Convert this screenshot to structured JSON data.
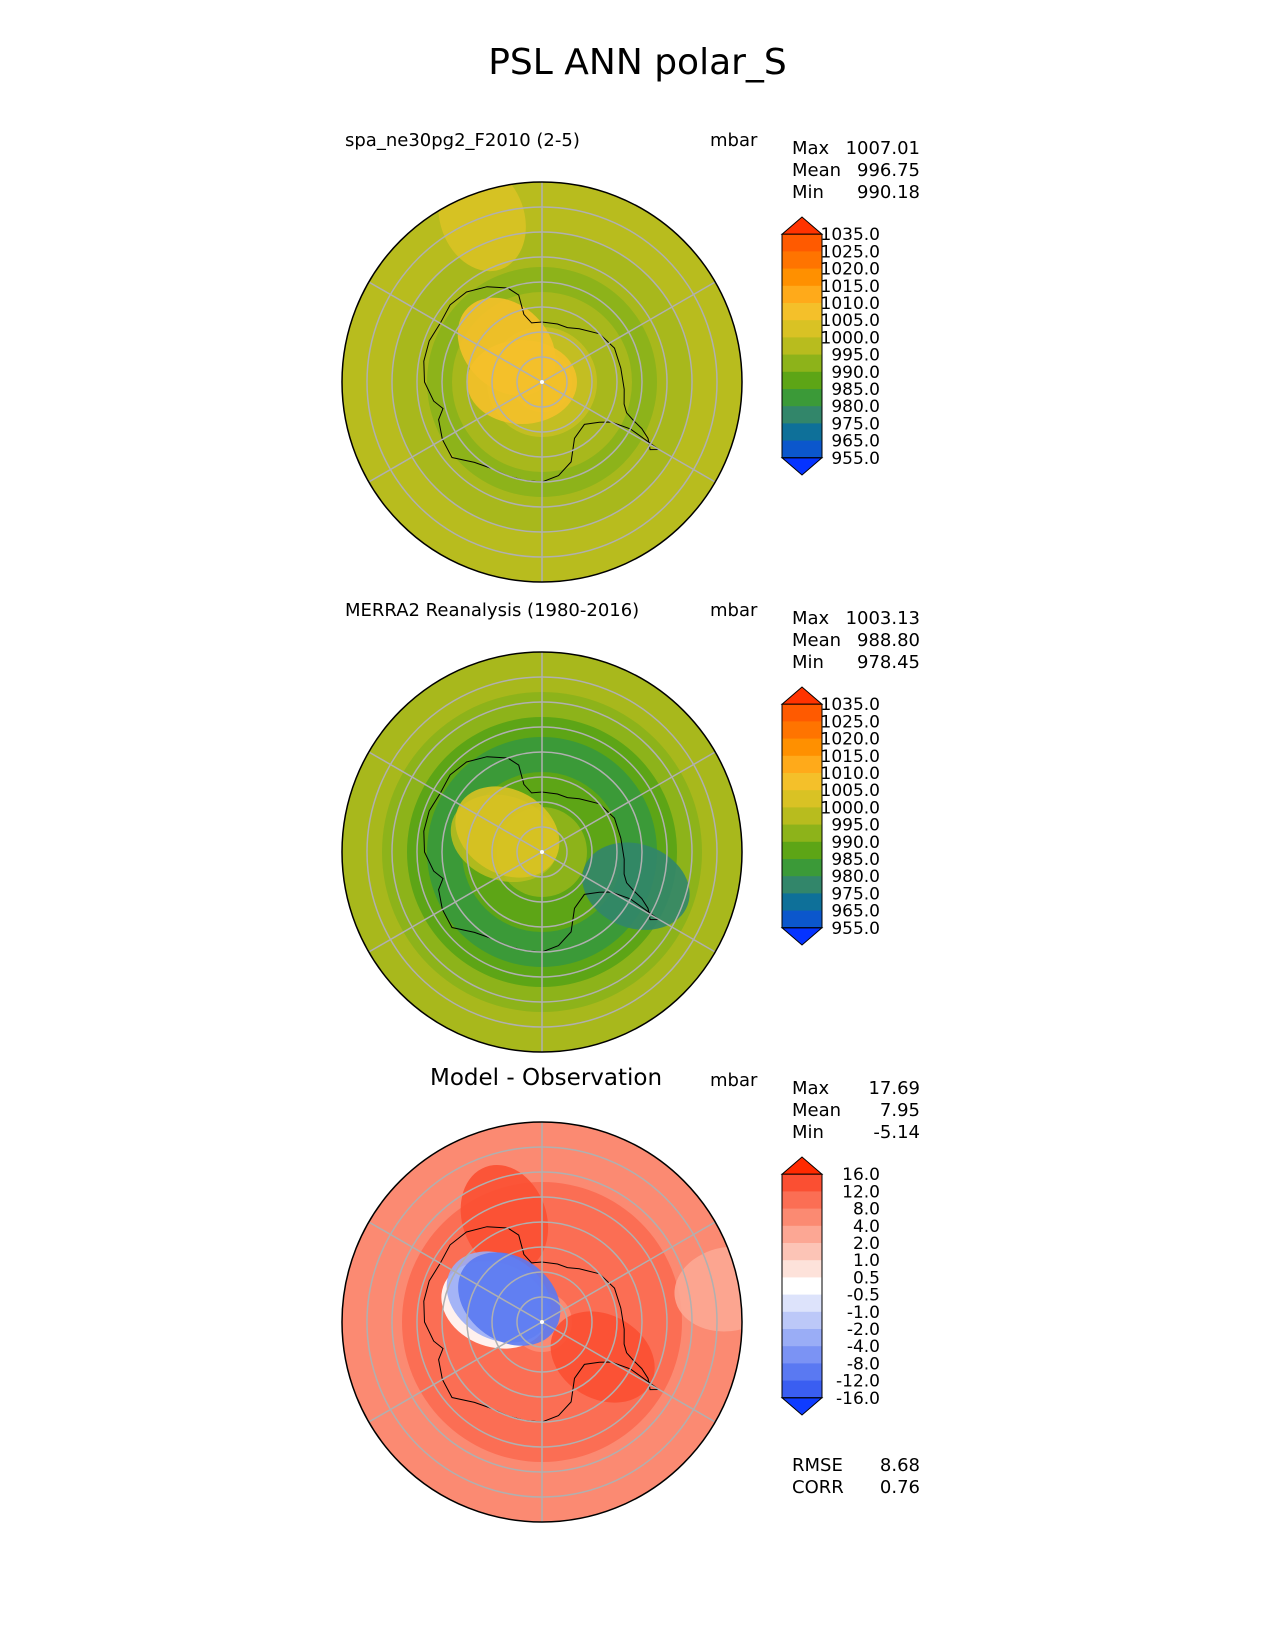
{
  "figure": {
    "title": "PSL ANN polar_S"
  },
  "chart_data": [
    {
      "type": "heatmap",
      "projection": "south-polar-stereographic",
      "title": "spa_ne30pg2_F2010 (2-5)",
      "units": "mbar",
      "stats": [
        {
          "label": "Max",
          "value": "1007.01"
        },
        {
          "label": "Mean",
          "value": "996.75"
        },
        {
          "label": "Min",
          "value": "990.18"
        }
      ],
      "colorbar": {
        "levels": [
          "1035.0",
          "1025.0",
          "1020.0",
          "1015.0",
          "1010.0",
          "1005.0",
          "1000.0",
          "995.0",
          "990.0",
          "985.0",
          "980.0",
          "975.0",
          "965.0",
          "955.0"
        ],
        "colors": [
          "#ff3300",
          "#ff5a00",
          "#ff7400",
          "#ff9000",
          "#ffaa1a",
          "#f4c02a",
          "#d9c224",
          "#b8bc1e",
          "#8db31a",
          "#5da516",
          "#3b9a38",
          "#32866a",
          "#0e7099",
          "#0b57cc",
          "#0533ff"
        ]
      },
      "field": {
        "background": "#b8bc1e",
        "bands": [
          {
            "lat": -60,
            "color": "#a8b81c"
          },
          {
            "lat": -67,
            "color": "#8db31a"
          },
          {
            "lat": -72,
            "color": "#a8b81c"
          },
          {
            "lat": -79,
            "color": "#c3be22"
          },
          {
            "lat": -84,
            "color": "#d9c224"
          }
        ],
        "patches": [
          {
            "color": "#d9c224",
            "lon": 160,
            "lat": -55
          },
          {
            "color": "#f4c02a",
            "lon": 135,
            "lat": -80
          },
          {
            "color": "#f4c02a",
            "lon": 90,
            "lat": -86
          }
        ]
      }
    },
    {
      "type": "heatmap",
      "projection": "south-polar-stereographic",
      "title": "MERRA2 Reanalysis (1980-2016)",
      "units": "mbar",
      "stats": [
        {
          "label": "Max",
          "value": "1003.13"
        },
        {
          "label": "Mean",
          "value": "988.80"
        },
        {
          "label": "Min",
          "value": "978.45"
        }
      ],
      "colorbar": {
        "levels": [
          "1035.0",
          "1025.0",
          "1020.0",
          "1015.0",
          "1010.0",
          "1005.0",
          "1000.0",
          "995.0",
          "990.0",
          "985.0",
          "980.0",
          "975.0",
          "965.0",
          "955.0"
        ],
        "colors": [
          "#ff3300",
          "#ff5a00",
          "#ff7400",
          "#ff9000",
          "#ffaa1a",
          "#f4c02a",
          "#d9c224",
          "#b8bc1e",
          "#8db31a",
          "#5da516",
          "#3b9a38",
          "#32866a",
          "#0e7099",
          "#0b57cc",
          "#0533ff"
        ]
      },
      "field": {
        "background": "#a8b81c",
        "bands": [
          {
            "lat": -58,
            "color": "#8db31a"
          },
          {
            "lat": -63,
            "color": "#5da516"
          },
          {
            "lat": -67,
            "color": "#3b9a38"
          },
          {
            "lat": -74,
            "color": "#5da516"
          },
          {
            "lat": -81,
            "color": "#8db31a"
          }
        ],
        "patches": [
          {
            "color": "#b8bc1e",
            "lon": 110,
            "lat": -82
          },
          {
            "color": "#d9c224",
            "lon": 120,
            "lat": -82
          },
          {
            "color": "#32866a",
            "lon": -70,
            "lat": -70
          }
        ]
      }
    },
    {
      "type": "heatmap",
      "projection": "south-polar-stereographic",
      "title": "Model - Observation",
      "units": "mbar",
      "stats": [
        {
          "label": "Max",
          "value": "17.69"
        },
        {
          "label": "Mean",
          "value": "7.95"
        },
        {
          "label": "Min",
          "value": "-5.14"
        }
      ],
      "metrics": [
        {
          "label": "RMSE",
          "value": "8.68"
        },
        {
          "label": "CORR",
          "value": "0.76"
        }
      ],
      "colorbar": {
        "levels": [
          "16.0",
          "12.0",
          "8.0",
          "4.0",
          "2.0",
          "1.0",
          "0.5",
          "-0.5",
          "-1.0",
          "-2.0",
          "-4.0",
          "-8.0",
          "-12.0",
          "-16.0"
        ],
        "colors": [
          "#ff2a00",
          "#fb4f32",
          "#fb6e54",
          "#fb8a72",
          "#fca794",
          "#fcc4b6",
          "#fde2da",
          "#ffffff",
          "#dde3fb",
          "#bcc8f8",
          "#9aadf6",
          "#7b93f4",
          "#5a79f2",
          "#3a5ef1",
          "#0f3cff"
        ]
      },
      "field": {
        "background": "#fb8a72",
        "bands": [
          {
            "lat": -62,
            "color": "#fb6e54"
          },
          {
            "lat": -70,
            "color": "#fb6e54"
          },
          {
            "lat": -76,
            "color": "#fb6e54"
          },
          {
            "lat": -84,
            "color": "#fb8a72"
          }
        ],
        "patches": [
          {
            "color": "#fca794",
            "lon": -100,
            "lat": -52
          },
          {
            "color": "#fb4f32",
            "lon": -60,
            "lat": -76
          },
          {
            "color": "#fb4f32",
            "lon": 160,
            "lat": -68
          },
          {
            "color": "#ffffff",
            "lon": 110,
            "lat": -80
          },
          {
            "color": "#9aadf6",
            "lon": 120,
            "lat": -80
          },
          {
            "color": "#5a79f2",
            "lon": 125,
            "lat": -82
          }
        ]
      }
    }
  ]
}
